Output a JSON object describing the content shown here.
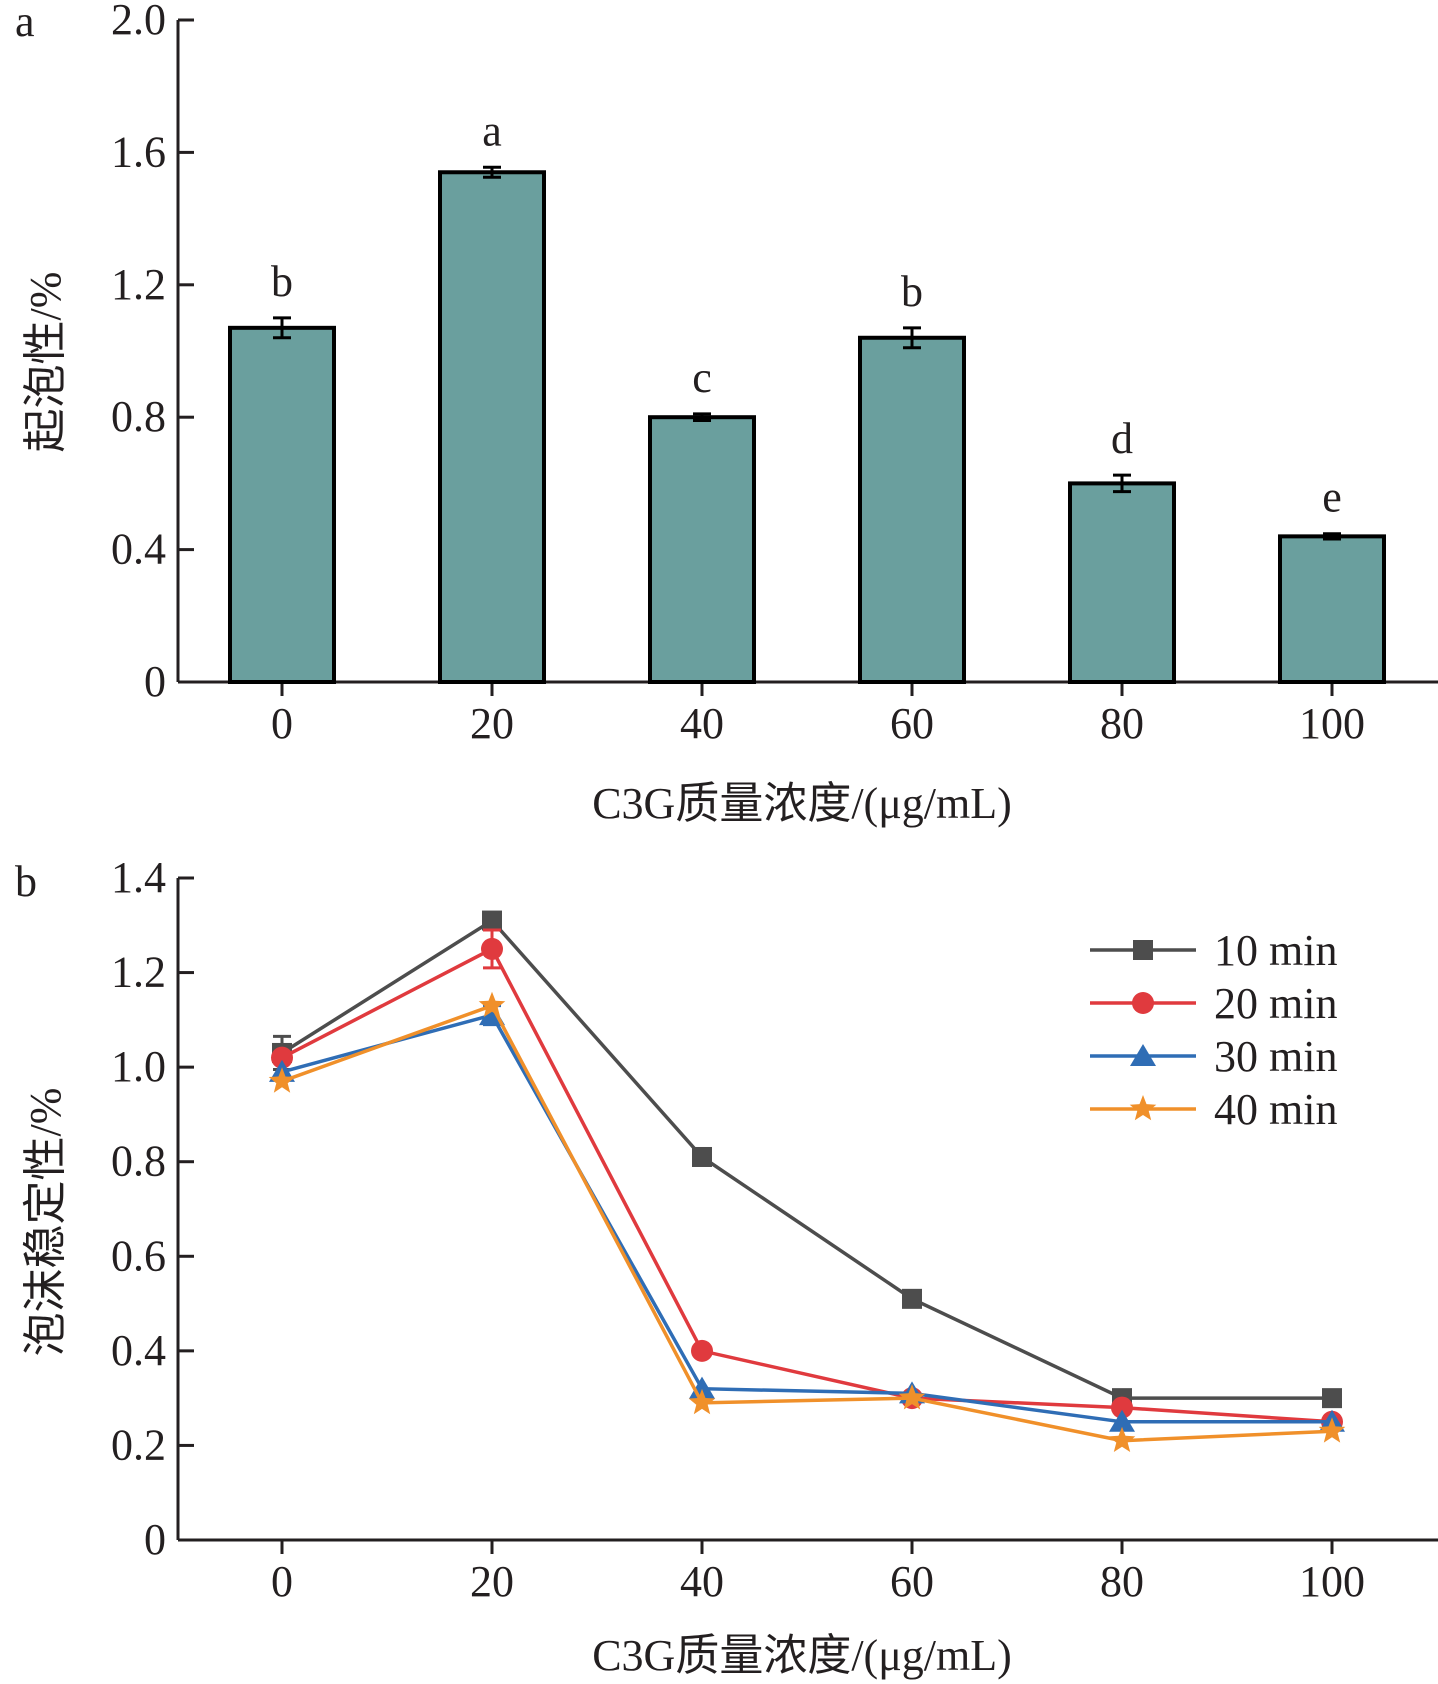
{
  "chart_data": [
    {
      "type": "bar",
      "panel_label": "a",
      "categories": [
        "0",
        "20",
        "40",
        "60",
        "80",
        "100"
      ],
      "values": [
        1.07,
        1.54,
        0.8,
        1.04,
        0.6,
        0.44
      ],
      "errors": [
        0.03,
        0.015,
        0.01,
        0.03,
        0.025,
        0.008
      ],
      "significance": [
        "b",
        "a",
        "c",
        "b",
        "d",
        "e"
      ],
      "xlabel": "C3G质量浓度/(μg/mL)",
      "ylabel": "起泡性/%",
      "ylim": [
        0,
        2.0
      ],
      "yticks": [
        "0",
        "0.4",
        "0.8",
        "1.2",
        "1.6",
        "2.0"
      ],
      "bar_color": "#6a9f9e",
      "grid": false
    },
    {
      "type": "line",
      "panel_label": "b",
      "x": [
        0,
        20,
        40,
        60,
        80,
        100
      ],
      "xticks": [
        "0",
        "20",
        "40",
        "60",
        "80",
        "100"
      ],
      "series": [
        {
          "name": "10 min",
          "values": [
            1.03,
            1.31,
            0.81,
            0.51,
            0.3,
            0.3
          ],
          "errors": [
            0.035,
            0.015,
            0,
            0,
            0,
            0
          ],
          "color": "#4d4d4d",
          "marker": "square"
        },
        {
          "name": "20 min",
          "values": [
            1.02,
            1.25,
            0.4,
            0.3,
            0.28,
            0.25
          ],
          "errors": [
            0,
            0.04,
            0,
            0,
            0,
            0
          ],
          "color": "#e03a3e",
          "marker": "circle"
        },
        {
          "name": "30 min",
          "values": [
            0.99,
            1.11,
            0.32,
            0.31,
            0.25,
            0.25
          ],
          "errors": [
            0,
            0.02,
            0,
            0,
            0,
            0
          ],
          "color": "#2f6db5",
          "marker": "triangle"
        },
        {
          "name": "40 min",
          "values": [
            0.97,
            1.13,
            0.29,
            0.3,
            0.21,
            0.23
          ],
          "errors": [
            0,
            0,
            0,
            0,
            0,
            0
          ],
          "color": "#f0902a",
          "marker": "star"
        }
      ],
      "xlabel": "C3G质量浓度/(μg/mL)",
      "ylabel": "泡沫稳定性/%",
      "ylim": [
        0,
        1.4
      ],
      "yticks": [
        "0",
        "0.2",
        "0.4",
        "0.6",
        "0.8",
        "1.0",
        "1.2",
        "1.4"
      ],
      "legend_position": "top-right",
      "grid": false
    }
  ]
}
